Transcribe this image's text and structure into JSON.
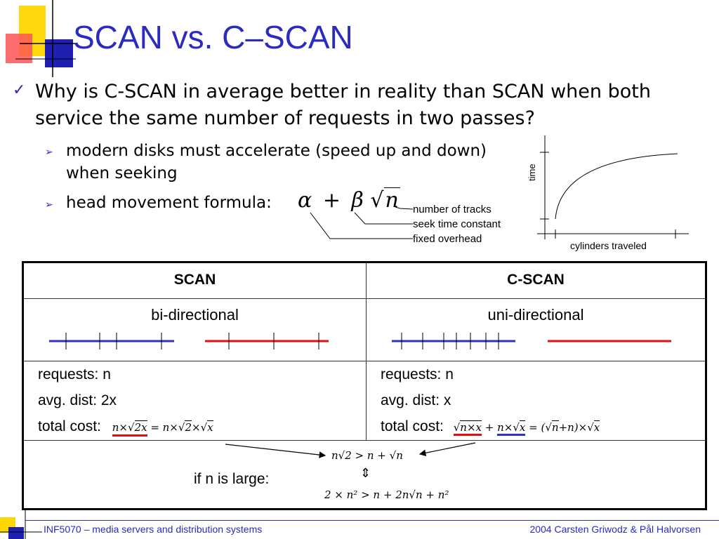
{
  "title": "SCAN vs. C–SCAN",
  "bullet1": "Why is C-SCAN in average better in reality than SCAN when both service the same number of requests in two passes?",
  "sub_bullets": [
    "modern disks must accelerate (speed up and down) when seeking",
    "head movement formula:"
  ],
  "formula": {
    "alpha": "α",
    "plus": "+",
    "beta": "β",
    "n": "n",
    "labels": [
      "number of tracks",
      "seek time constant",
      "fixed overhead"
    ]
  },
  "graph": {
    "ylabel": "time",
    "xlabel": "cylinders traveled"
  },
  "table": {
    "headers": [
      "SCAN",
      "C-SCAN"
    ],
    "direction": [
      "bi-directional",
      "uni-directional"
    ],
    "scan": {
      "requests": "requests: n",
      "dist": "avg. dist: 2x",
      "cost": "total cost:"
    },
    "cscan": {
      "requests": "requests: n",
      "dist": "avg. dist: x",
      "cost": "total cost:"
    },
    "bottom_label": "if n is large:",
    "ineq_top": "n√2 > n + √n",
    "ineq_arrow": "⇕",
    "ineq_bottom": "2 × n² > n + 2n√n + n²"
  },
  "colors": {
    "accent": "#2b2bbf",
    "scan_line_left": "#3030c0",
    "scan_line_right": "#e01010",
    "deco_yellow": "#ffd700",
    "deco_red": "#f04040",
    "deco_blue": "#2020b0"
  },
  "footer": {
    "left": "INF5070 – media servers and distribution systems",
    "right": "2004  Carsten Griwodz & Pål Halvorsen"
  }
}
